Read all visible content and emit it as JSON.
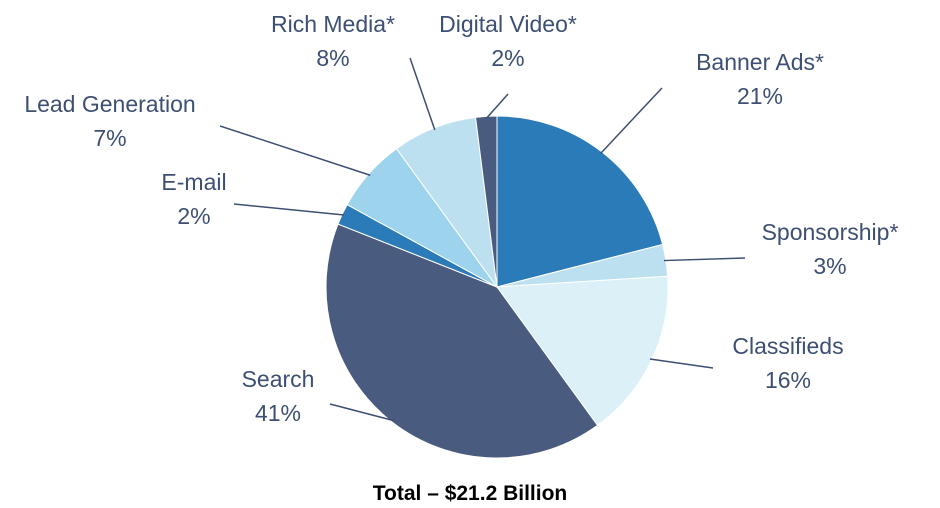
{
  "chart_data": {
    "type": "pie",
    "caption": "Total – $21.2 Billion",
    "slices": [
      {
        "name": "Banner Ads*",
        "value": 21,
        "value_label": "21%",
        "color": "#2a7bb8"
      },
      {
        "name": "Sponsorship*",
        "value": 3,
        "value_label": "3%",
        "color": "#bde0f0"
      },
      {
        "name": "Classifieds",
        "value": 16,
        "value_label": "16%",
        "color": "#dcf0f8"
      },
      {
        "name": "Search",
        "value": 41,
        "value_label": "41%",
        "color": "#4a5b80"
      },
      {
        "name": "E-mail",
        "value": 2,
        "value_label": "2%",
        "color": "#2a7bb8"
      },
      {
        "name": "Lead Generation",
        "value": 7,
        "value_label": "7%",
        "color": "#9dd3ec"
      },
      {
        "name": "Rich Media*",
        "value": 8,
        "value_label": "8%",
        "color": "#bde0f0"
      },
      {
        "name": "Digital Video*",
        "value": 2,
        "value_label": "2%",
        "color": "#4a5b80"
      }
    ]
  }
}
